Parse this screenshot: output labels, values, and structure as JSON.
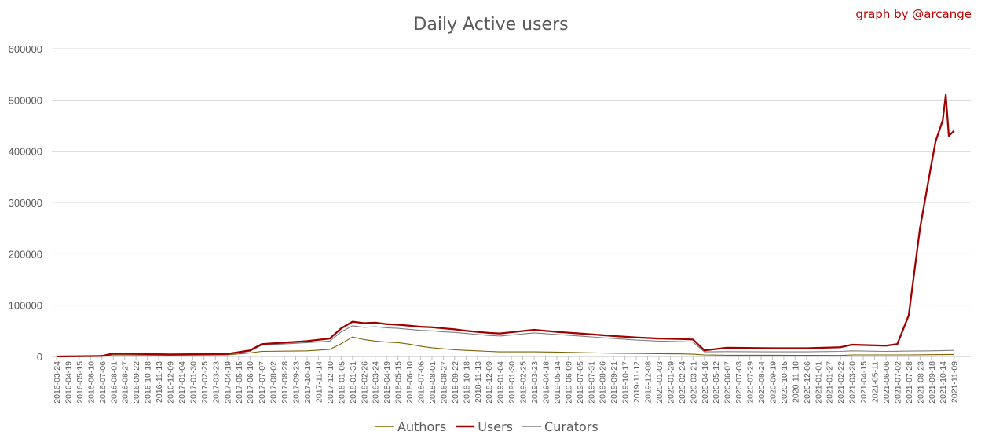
{
  "chart_data": {
    "type": "line",
    "title": "Daily Active users",
    "credit": "graph by @arcange",
    "xlabel": "",
    "ylabel": "",
    "ylim": [
      0,
      600000
    ],
    "yticks": [
      "0",
      "100000",
      "200000",
      "300000",
      "400000",
      "500000",
      "600000"
    ],
    "grid": true,
    "legend_position": "bottom",
    "x_tick_labels": [
      "2016-03-24",
      "2016-04-19",
      "2016-05-15",
      "2016-06-10",
      "2016-07-06",
      "2016-08-01",
      "2016-08-27",
      "2016-09-22",
      "2016-10-18",
      "2016-11-13",
      "2016-12-09",
      "2017-01-04",
      "2017-01-30",
      "2017-02-25",
      "2017-03-23",
      "2017-04-19",
      "2017-05-15",
      "2017-06-10",
      "2017-07-07",
      "2017-08-02",
      "2017-08-28",
      "2017-09-23",
      "2017-10-19",
      "2017-11-14",
      "2017-12-10",
      "2018-01-05",
      "2018-01-31",
      "2018-02-26",
      "2018-03-24",
      "2018-04-19",
      "2018-05-15",
      "2018-06-10",
      "2018-07-06",
      "2018-08-01",
      "2018-08-27",
      "2018-09-22",
      "2018-10-18",
      "2018-11-13",
      "2018-12-09",
      "2019-01-04",
      "2019-01-30",
      "2019-02-25",
      "2019-03-23",
      "2019-04-18",
      "2019-05-14",
      "2019-06-09",
      "2019-07-05",
      "2019-07-31",
      "2019-08-26",
      "2019-09-21",
      "2019-10-17",
      "2019-11-12",
      "2019-12-08",
      "2020-01-03",
      "2020-01-29",
      "2020-02-24",
      "2020-03-21",
      "2020-04-16",
      "2020-05-12",
      "2020-06-07",
      "2020-07-03",
      "2020-07-29",
      "2020-08-24",
      "2020-09-19",
      "2020-10-15",
      "2020-11-10",
      "2020-12-06",
      "2021-01-01",
      "2021-01-27",
      "2021-02-22",
      "2021-03-20",
      "2021-04-15",
      "2021-05-11",
      "2021-06-06",
      "2021-07-02",
      "2021-07-28",
      "2021-08-23",
      "2021-09-18",
      "2021-10-14",
      "2021-11-09"
    ],
    "x_tick_labels_as_printed": [
      "2016-03-24",
      "2016-04-19",
      "2016-05-15",
      "2016-06-10",
      "2016-07-06",
      "2016-08-01",
      "2016-08-27",
      "2016-09-22",
      "2016-10-18",
      "2016-11-13",
      "2016-12-09",
      "2017-01-04",
      "2017-01-30",
      "2017-02-25",
      "2017-03-23",
      "2017-04-19",
      "2017-05-15",
      "2017-06-10",
      "2017-07-07",
      "2017-08-02",
      "2017-08-28",
      "2017-09-23",
      "2017-10-19",
      "2017-11-14",
      "2017-12-10",
      "2018-01-05",
      "2018-01-31",
      "2018-02-26",
      "2018-03-24",
      "2018-04-19",
      "2018-05-15",
      "2018-06-10",
      "2018-07-06",
      "2018-08-01",
      "2018-08-27",
      "2018-09-22",
      "2018-10-18",
      "2018-11-13",
      "2018-12-09",
      "2019-01-04",
      "2019-01-30",
      "2019-02-25",
      "2019-03-23",
      "2019-04-18",
      "2019-05-14",
      "2019-06-09",
      "2019-07-05",
      "2019-07-31",
      "2019-08-26",
      "2019-09-21",
      "2019-10-17",
      "2019-11-12",
      "2019-12-08",
      "2020-01-03",
      "2020-01-29",
      "2020-02-24",
      "2020-03-21",
      "2020-04-16",
      "2020-05-12",
      "2020-06-07",
      "2020-07-03",
      "2020-07-29",
      "2020-08-24",
      "2020-09-19",
      "2020-10-15",
      "2020-11-10",
      "2020-12-06",
      "2021-01-01",
      "2021-01-27",
      "2021-02-22",
      "2021-03-20",
      "2021-04-15",
      "2021-05-11",
      "2021-06-06",
      "2021-07-02",
      "2021-07-28",
      "2021-08-23",
      "2021-09-18",
      "2021-10-14",
      "2021-11-09"
    ],
    "series": [
      {
        "name": "Authors",
        "color": "#7f6000",
        "x": [
          "2016-03-24",
          "2016-07-06",
          "2016-08-01",
          "2016-12-09",
          "2017-04-19",
          "2017-06-10",
          "2017-07-07",
          "2017-10-19",
          "2017-12-10",
          "2018-01-05",
          "2018-01-31",
          "2018-02-26",
          "2018-03-24",
          "2018-04-19",
          "2018-05-15",
          "2018-06-10",
          "2018-07-06",
          "2018-08-01",
          "2018-08-27",
          "2018-09-22",
          "2018-10-18",
          "2018-11-13",
          "2018-12-09",
          "2019-01-04",
          "2019-03-23",
          "2019-05-14",
          "2019-07-05",
          "2019-09-21",
          "2019-11-12",
          "2020-01-03",
          "2020-02-24",
          "2020-03-21",
          "2020-04-16",
          "2020-06-07",
          "2020-09-19",
          "2020-12-06",
          "2021-02-22",
          "2021-03-20",
          "2021-06-06",
          "2021-07-28",
          "2021-09-18",
          "2021-11-09"
        ],
        "y": [
          0,
          500,
          3000,
          2500,
          3000,
          7000,
          10000,
          11000,
          14000,
          25000,
          38000,
          33000,
          30000,
          28000,
          27000,
          24000,
          20000,
          17000,
          15000,
          13000,
          12000,
          11000,
          10000,
          9000,
          9000,
          8500,
          7500,
          6500,
          6000,
          5500,
          5000,
          4500,
          3000,
          2500,
          2500,
          2200,
          2000,
          3000,
          3000,
          3000,
          3500,
          4000
        ]
      },
      {
        "name": "Users",
        "color": "#a00000",
        "x": [
          "2016-03-24",
          "2016-07-06",
          "2016-08-01",
          "2016-12-09",
          "2017-04-19",
          "2017-06-10",
          "2017-07-07",
          "2017-10-19",
          "2017-12-10",
          "2018-01-05",
          "2018-01-31",
          "2018-02-26",
          "2018-03-24",
          "2018-04-19",
          "2018-05-15",
          "2018-06-10",
          "2018-07-06",
          "2018-08-01",
          "2018-08-27",
          "2018-09-22",
          "2018-10-18",
          "2018-11-13",
          "2018-12-09",
          "2019-01-04",
          "2019-03-23",
          "2019-05-14",
          "2019-07-05",
          "2019-09-21",
          "2019-11-12",
          "2020-01-03",
          "2020-02-24",
          "2020-03-21",
          "2020-04-16",
          "2020-06-07",
          "2020-09-19",
          "2020-12-06",
          "2021-02-22",
          "2021-03-20",
          "2021-06-06",
          "2021-07-02",
          "2021-07-28",
          "2021-08-23",
          "2021-09-18",
          "2021-09-28",
          "2021-10-14",
          "2021-10-21",
          "2021-10-28",
          "2021-11-09"
        ],
        "y": [
          0,
          1000,
          6000,
          4000,
          5000,
          12000,
          24000,
          30000,
          35000,
          55000,
          68000,
          65000,
          66000,
          63000,
          62000,
          60000,
          58000,
          57000,
          55000,
          53000,
          50000,
          48000,
          46000,
          45000,
          52000,
          48000,
          45000,
          40000,
          37000,
          35000,
          34000,
          33000,
          12000,
          17000,
          16000,
          16000,
          18000,
          23000,
          21000,
          24000,
          80000,
          250000,
          375000,
          420000,
          460000,
          510000,
          430000,
          440000
        ]
      },
      {
        "name": "Curators",
        "color": "#7f7f7f",
        "x": [
          "2016-03-24",
          "2016-07-06",
          "2016-08-01",
          "2016-12-09",
          "2017-04-19",
          "2017-06-10",
          "2017-07-07",
          "2017-10-19",
          "2017-12-10",
          "2018-01-05",
          "2018-01-31",
          "2018-02-26",
          "2018-03-24",
          "2018-04-19",
          "2018-05-15",
          "2018-06-10",
          "2018-07-06",
          "2018-08-01",
          "2018-08-27",
          "2018-09-22",
          "2018-10-18",
          "2018-11-13",
          "2018-12-09",
          "2019-01-04",
          "2019-03-23",
          "2019-05-14",
          "2019-07-05",
          "2019-09-21",
          "2019-11-12",
          "2020-01-03",
          "2020-02-24",
          "2020-03-21",
          "2020-04-16",
          "2020-06-07",
          "2020-09-19",
          "2020-12-06",
          "2021-02-22",
          "2021-03-20",
          "2021-06-06",
          "2021-07-28",
          "2021-09-18",
          "2021-11-09"
        ],
        "y": [
          0,
          800,
          5000,
          3500,
          4000,
          10000,
          22000,
          27000,
          30000,
          48000,
          60000,
          57000,
          58000,
          56000,
          55000,
          53000,
          51000,
          50000,
          48000,
          47000,
          45000,
          43000,
          41000,
          40000,
          46000,
          43000,
          40000,
          35000,
          32000,
          30000,
          29000,
          28000,
          9000,
          9500,
          9000,
          9000,
          10000,
          11000,
          10000,
          10500,
          11000,
          12000
        ]
      }
    ]
  }
}
